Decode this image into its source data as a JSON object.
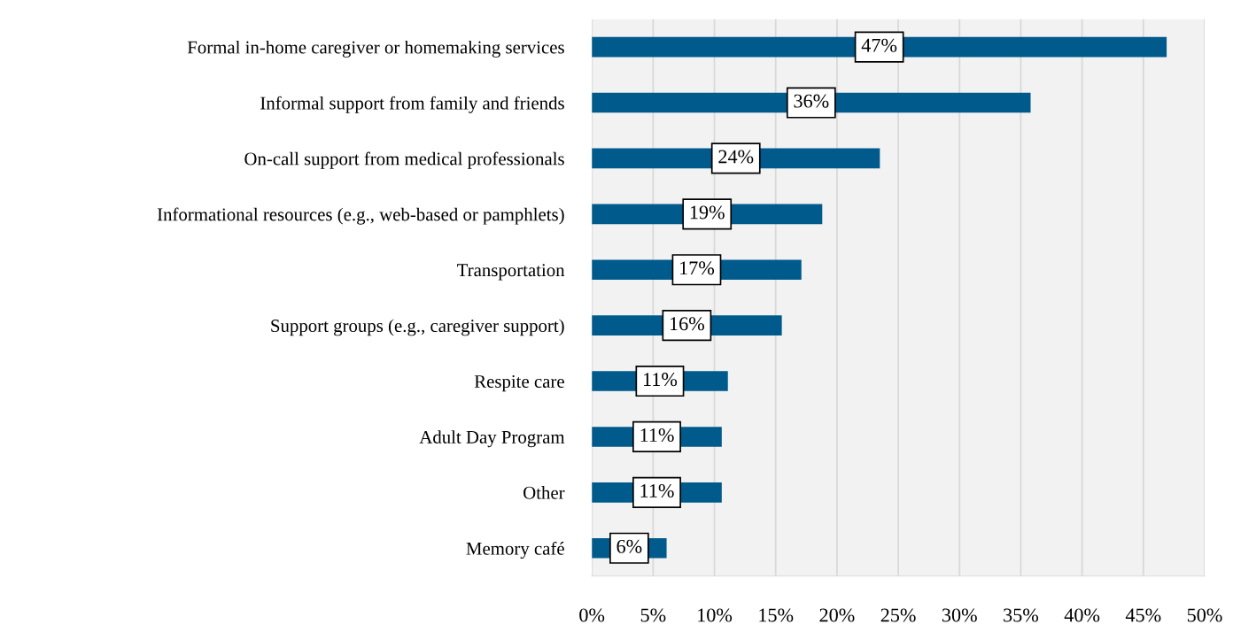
{
  "chart_data": {
    "type": "bar",
    "orientation": "horizontal",
    "categories": [
      "Formal in-home caregiver or homemaking services",
      "Informal support from family and friends",
      "On-call support from medical professionals",
      "Informational resources (e.g., web-based or pamphlets)",
      "Transportation",
      "Support groups (e.g., caregiver support)",
      "Respite care",
      "Adult Day Program",
      "Other",
      "Memory café"
    ],
    "values": [
      46.9,
      35.8,
      23.5,
      18.8,
      17.1,
      15.5,
      11.1,
      10.6,
      10.6,
      6.1
    ],
    "value_labels": [
      "47%",
      "36%",
      "24%",
      "19%",
      "17%",
      "16%",
      "11%",
      "11%",
      "11%",
      "6%"
    ],
    "color": "#005a8c",
    "xlim": [
      0,
      50
    ],
    "xticks": [
      {
        "value": 0,
        "label": "0%"
      },
      {
        "value": 5,
        "label": "5%"
      },
      {
        "value": 10,
        "label": "10%"
      },
      {
        "value": 15,
        "label": "15%"
      },
      {
        "value": 20,
        "label": "20%"
      },
      {
        "value": 25,
        "label": "25%"
      },
      {
        "value": 30,
        "label": "30%"
      },
      {
        "value": 35,
        "label": "35%"
      },
      {
        "value": 40,
        "label": "40%"
      },
      {
        "value": 45,
        "label": "45%"
      },
      {
        "value": 50,
        "label": "50%"
      }
    ],
    "grid": "x",
    "legend": false
  }
}
